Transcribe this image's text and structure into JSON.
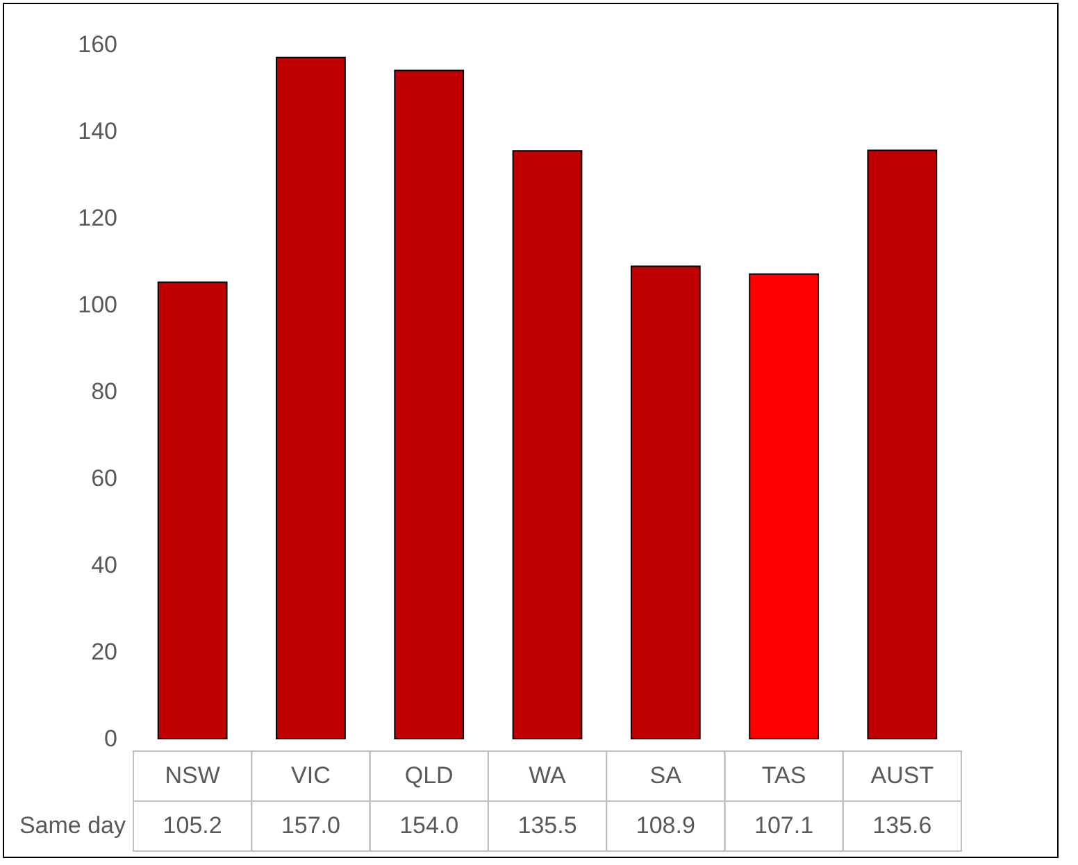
{
  "chart_data": {
    "type": "bar",
    "categories": [
      "NSW",
      "VIC",
      "QLD",
      "WA",
      "SA",
      "TAS",
      "AUST"
    ],
    "series": [
      {
        "name": "Same day",
        "colors": [
          "#c00000",
          "#c00000",
          "#c00000",
          "#c00000",
          "#c00000",
          "#ff0000",
          "#c00000"
        ],
        "values": [
          105.2,
          157.0,
          154.0,
          135.5,
          108.9,
          107.1,
          135.6
        ],
        "value_labels": [
          "105.2",
          "157.0",
          "154.0",
          "135.5",
          "108.9",
          "107.1",
          "135.6"
        ]
      }
    ],
    "ylim": [
      0,
      160
    ],
    "yticks": [
      0,
      20,
      40,
      60,
      80,
      100,
      120,
      140,
      160
    ],
    "grid": false
  }
}
